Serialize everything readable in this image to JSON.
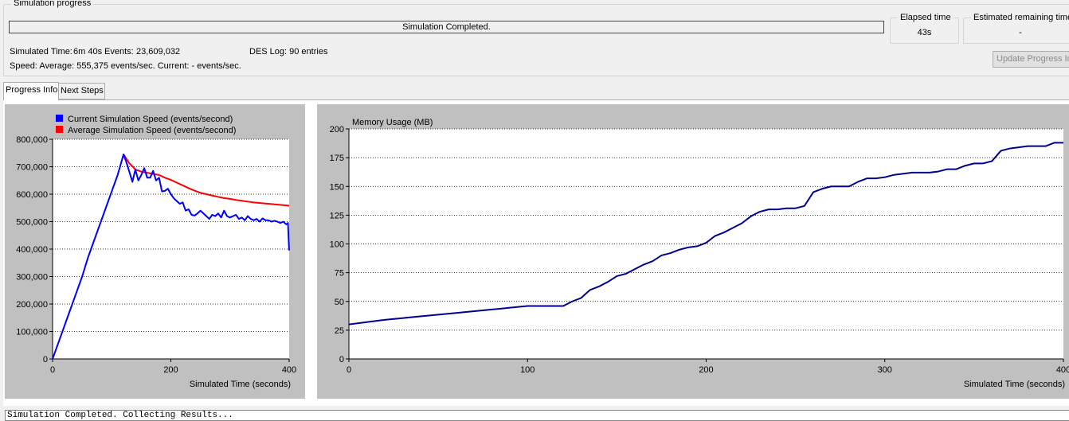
{
  "progress": {
    "group_title": "Simulation progress",
    "status_text": "Simulation Completed.",
    "percent": 100,
    "simulated_time_label": "Simulated Time:",
    "simulated_time_value": "6m 40s",
    "events_label": "Events:",
    "events_value": "23,609,032",
    "des_log": "DES Log: 90 entries",
    "speed_text": "Speed: Average: 555,375 events/sec. Current: - events/sec.",
    "elapsed_title": "Elapsed time",
    "elapsed_value": "43s",
    "remaining_title": "Estimated remaining time",
    "remaining_value": "-",
    "update_button": "Update Progress Info"
  },
  "tabs": [
    {
      "label": "Progress Info",
      "active": true
    },
    {
      "label": "Next Steps",
      "active": false
    }
  ],
  "log_text": "Simulation Completed. Collecting Results...",
  "colors": {
    "current_speed": "#0000ff",
    "average_speed": "#ff0000",
    "memory_line": "#00008b",
    "panel_bg": "#c0c0c0"
  },
  "chart_data": [
    {
      "type": "line",
      "xlabel": "Simulated Time (seconds)",
      "ylabel": "",
      "xlim": [
        0,
        400
      ],
      "ylim": [
        0,
        800000
      ],
      "x_ticks": [
        0,
        200,
        400
      ],
      "x_tick_labels": [
        "0",
        "200",
        "400"
      ],
      "y_ticks": [
        0,
        100000,
        200000,
        300000,
        400000,
        500000,
        600000,
        700000,
        800000
      ],
      "y_tick_labels": [
        "0",
        "100,000",
        "200,000",
        "300,000",
        "400,000",
        "500,000",
        "600,000",
        "700,000",
        "800,000"
      ],
      "grid": true,
      "legend_position": "top-left",
      "series": [
        {
          "name": "Current Simulation Speed (events/second)",
          "color": "#0000ff",
          "x": [
            0,
            10,
            20,
            30,
            40,
            50,
            60,
            70,
            80,
            90,
            100,
            110,
            120,
            125,
            130,
            135,
            140,
            145,
            150,
            155,
            160,
            165,
            170,
            175,
            180,
            185,
            190,
            195,
            200,
            205,
            210,
            215,
            220,
            225,
            230,
            235,
            240,
            245,
            250,
            255,
            260,
            265,
            270,
            275,
            280,
            285,
            290,
            295,
            300,
            305,
            310,
            315,
            320,
            325,
            330,
            335,
            340,
            345,
            350,
            355,
            360,
            365,
            370,
            375,
            380,
            385,
            390,
            395,
            398,
            399,
            400
          ],
          "y": [
            0,
            60000,
            120000,
            180000,
            240000,
            300000,
            370000,
            430000,
            490000,
            550000,
            610000,
            670000,
            745000,
            715000,
            680000,
            645000,
            690000,
            650000,
            670000,
            695000,
            660000,
            660000,
            685000,
            650000,
            660000,
            610000,
            612000,
            620000,
            600000,
            585000,
            575000,
            565000,
            570000,
            540000,
            545000,
            525000,
            522000,
            530000,
            540000,
            530000,
            520000,
            510000,
            525000,
            520000,
            530000,
            515000,
            540000,
            520000,
            515000,
            520000,
            525000,
            510000,
            515000,
            505000,
            520000,
            510000,
            505000,
            510000,
            500000,
            512000,
            505000,
            505000,
            500000,
            503000,
            500000,
            495000,
            500000,
            490000,
            495000,
            440000,
            395000
          ]
        },
        {
          "name": "Average Simulation Speed (events/second)",
          "color": "#ff0000",
          "x": [
            120,
            130,
            140,
            150,
            160,
            170,
            180,
            190,
            200,
            210,
            220,
            230,
            240,
            250,
            260,
            270,
            280,
            290,
            300,
            310,
            320,
            330,
            340,
            350,
            360,
            370,
            380,
            390,
            400
          ],
          "y": [
            745000,
            712000,
            690000,
            682000,
            678000,
            674000,
            670000,
            660000,
            652000,
            642000,
            632000,
            622000,
            613000,
            605000,
            600000,
            595000,
            590000,
            586000,
            583000,
            579000,
            576000,
            573000,
            570000,
            568000,
            566000,
            564000,
            562000,
            560000,
            558000
          ]
        }
      ]
    },
    {
      "type": "line",
      "title": "Memory Usage (MB)",
      "xlabel": "Simulated Time (seconds)",
      "ylabel": "",
      "xlim": [
        0,
        400
      ],
      "ylim": [
        0,
        200
      ],
      "x_ticks": [
        0,
        100,
        200,
        300,
        400
      ],
      "x_tick_labels": [
        "0",
        "100",
        "200",
        "300",
        "400"
      ],
      "y_ticks": [
        0,
        25,
        50,
        75,
        100,
        125,
        150,
        175,
        200
      ],
      "y_tick_labels": [
        "0",
        "25",
        "50",
        "75",
        "100",
        "125",
        "150",
        "175",
        "200"
      ],
      "grid": true,
      "series": [
        {
          "name": "",
          "color": "#00008b",
          "x": [
            0,
            20,
            40,
            60,
            80,
            100,
            120,
            125,
            130,
            135,
            140,
            145,
            150,
            155,
            160,
            165,
            170,
            175,
            180,
            185,
            190,
            195,
            200,
            205,
            210,
            215,
            220,
            225,
            230,
            235,
            240,
            245,
            250,
            255,
            260,
            265,
            270,
            275,
            280,
            285,
            290,
            295,
            300,
            305,
            310,
            315,
            320,
            325,
            330,
            335,
            340,
            345,
            350,
            355,
            360,
            365,
            370,
            375,
            380,
            385,
            390,
            395,
            400
          ],
          "y": [
            30,
            34,
            37,
            40,
            43,
            46,
            46,
            50,
            53,
            60,
            63,
            67,
            72,
            74,
            78,
            82,
            85,
            90,
            92,
            95,
            97,
            98,
            101,
            107,
            110,
            114,
            118,
            124,
            128,
            130,
            130,
            131,
            131,
            133,
            145,
            148,
            150,
            150,
            150,
            154,
            157,
            157,
            158,
            160,
            161,
            162,
            162,
            162,
            163,
            165,
            165,
            168,
            170,
            170,
            172,
            181,
            183,
            184,
            185,
            185,
            185,
            188,
            188
          ]
        }
      ]
    }
  ]
}
